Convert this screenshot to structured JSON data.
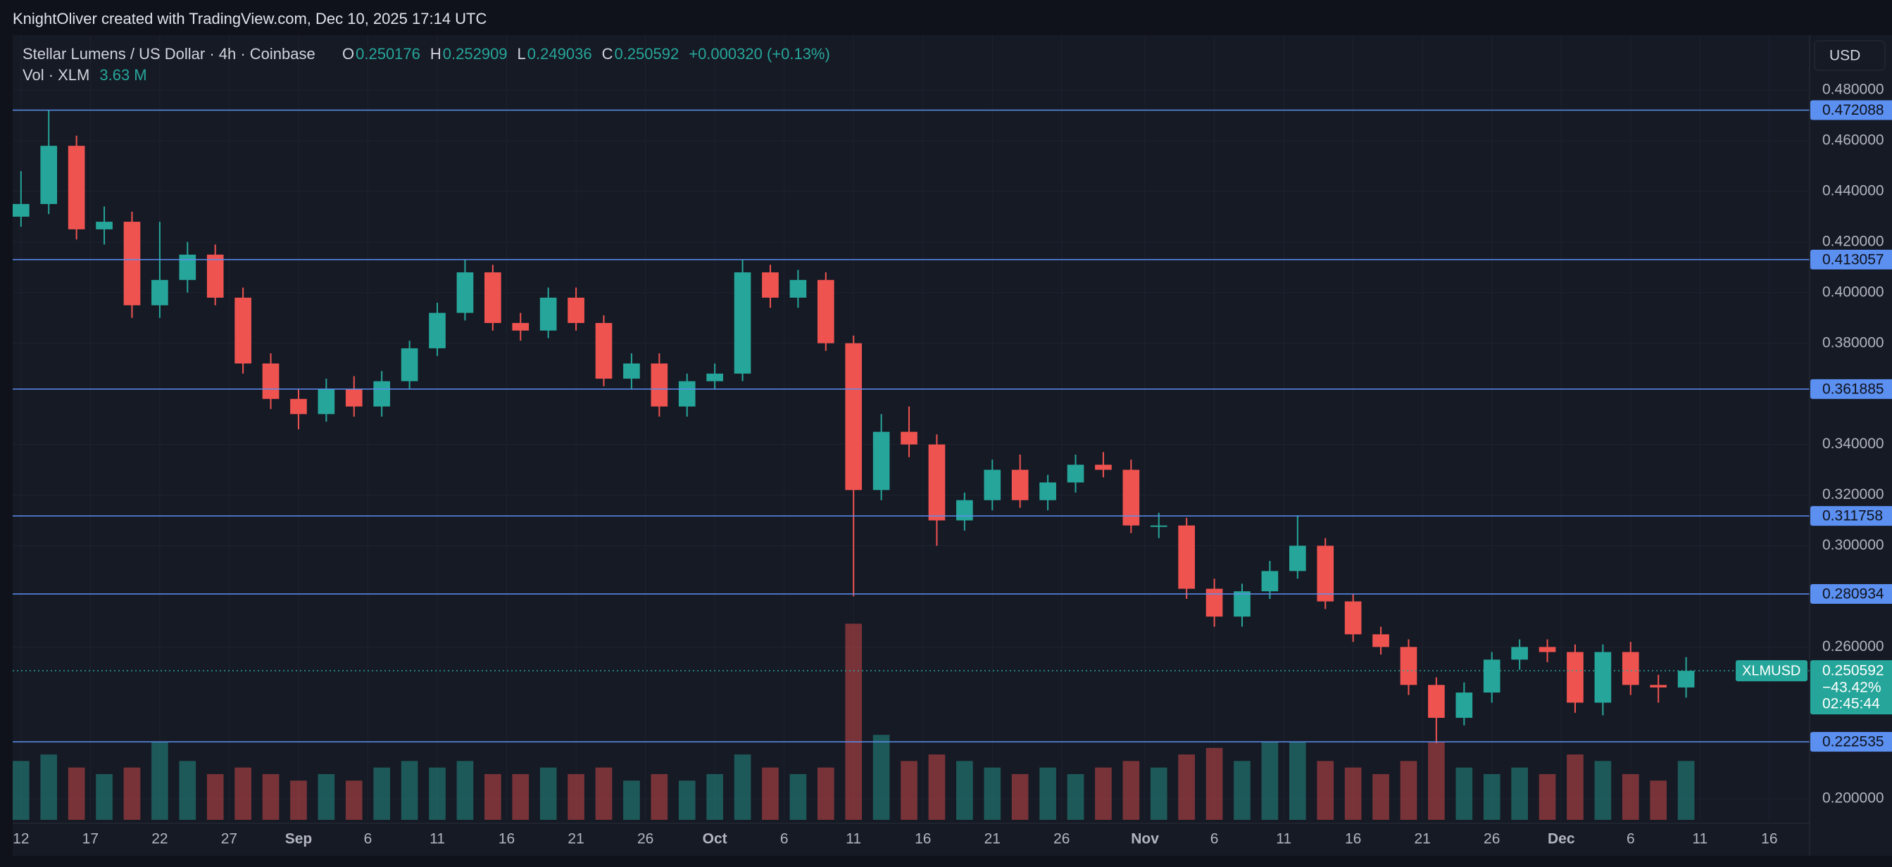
{
  "header": {
    "credit": "KnightOliver created with TradingView.com, Dec 10, 2025 17:14 UTC",
    "currency_button": "USD"
  },
  "chart_data": {
    "type": "candlestick",
    "title": "Stellar Lumens / US Dollar · 4h · Coinbase",
    "ohlc_labels": [
      "O",
      "H",
      "L",
      "C"
    ],
    "ohlc_values": [
      "0.250176",
      "0.252909",
      "0.249036",
      "0.250592"
    ],
    "change": "+0.000320 (+0.13%)",
    "volume_label": "Vol · XLM",
    "volume_value": "3.63 M",
    "up_color": "#26a69a",
    "down_color": "#ef5350",
    "level_color": "#5b8ff0",
    "xlim": [
      -0.6,
      128.9
    ],
    "xticks": [
      {
        "value": 0,
        "label": "12"
      },
      {
        "value": 5,
        "label": "17"
      },
      {
        "value": 10,
        "label": "22"
      },
      {
        "value": 15,
        "label": "27"
      },
      {
        "value": 20,
        "label": "Sep"
      },
      {
        "value": 25,
        "label": "6"
      },
      {
        "value": 30,
        "label": "11"
      },
      {
        "value": 35,
        "label": "16"
      },
      {
        "value": 40,
        "label": "21"
      },
      {
        "value": 45,
        "label": "26"
      },
      {
        "value": 50,
        "label": "Oct"
      },
      {
        "value": 55,
        "label": "6"
      },
      {
        "value": 60,
        "label": "11"
      },
      {
        "value": 65,
        "label": "16"
      },
      {
        "value": 70,
        "label": "21"
      },
      {
        "value": 75,
        "label": "26"
      },
      {
        "value": 81,
        "label": "Nov"
      },
      {
        "value": 86,
        "label": "6"
      },
      {
        "value": 91,
        "label": "11"
      },
      {
        "value": 96,
        "label": "16"
      },
      {
        "value": 101,
        "label": "21"
      },
      {
        "value": 106,
        "label": "26"
      },
      {
        "value": 111,
        "label": "Dec"
      },
      {
        "value": 116,
        "label": "6"
      },
      {
        "value": 121,
        "label": "11"
      },
      {
        "value": 126,
        "label": "16"
      }
    ],
    "ylim": [
      0.1917,
      0.5017
    ],
    "yticks": [
      {
        "value": 0.2,
        "label": "0.200000"
      },
      {
        "value": 0.26,
        "label": "0.260000"
      },
      {
        "value": 0.3,
        "label": "0.300000"
      },
      {
        "value": 0.32,
        "label": "0.320000"
      },
      {
        "value": 0.34,
        "label": "0.340000"
      },
      {
        "value": 0.38,
        "label": "0.380000"
      },
      {
        "value": 0.4,
        "label": "0.400000"
      },
      {
        "value": 0.42,
        "label": "0.420000"
      },
      {
        "value": 0.44,
        "label": "0.440000"
      },
      {
        "value": 0.46,
        "label": "0.460000"
      },
      {
        "value": 0.48,
        "label": "0.480000"
      }
    ],
    "levels": [
      {
        "value": 0.472088,
        "label": "0.472088"
      },
      {
        "value": 0.413057,
        "label": "0.413057"
      },
      {
        "value": 0.361885,
        "label": "0.361885"
      },
      {
        "value": 0.311758,
        "label": "0.311758"
      },
      {
        "value": 0.280934,
        "label": "0.280934"
      },
      {
        "value": 0.222535,
        "label": "0.222535"
      }
    ],
    "last": {
      "symbol": "XLMUSD",
      "value": 0.250592,
      "label": "0.250592",
      "change": "−43.42%",
      "countdown": "02:45:44"
    },
    "x": [
      0,
      2,
      4,
      6,
      8,
      10,
      12,
      14,
      16,
      18,
      20,
      22,
      24,
      26,
      28,
      30,
      32,
      34,
      36,
      38,
      40,
      42,
      44,
      46,
      48,
      50,
      52,
      54,
      56,
      58,
      60,
      62,
      64,
      66,
      68,
      70,
      72,
      74,
      76,
      78,
      80,
      82,
      84,
      86,
      88,
      90,
      92,
      94,
      96,
      98,
      100,
      102,
      104,
      106,
      108,
      110,
      112,
      114,
      116,
      118,
      120
    ],
    "open": [
      0.43,
      0.435,
      0.458,
      0.425,
      0.428,
      0.395,
      0.405,
      0.415,
      0.398,
      0.372,
      0.358,
      0.352,
      0.362,
      0.355,
      0.365,
      0.378,
      0.392,
      0.408,
      0.388,
      0.385,
      0.398,
      0.388,
      0.366,
      0.372,
      0.355,
      0.365,
      0.368,
      0.408,
      0.398,
      0.405,
      0.38,
      0.322,
      0.345,
      0.34,
      0.31,
      0.318,
      0.33,
      0.318,
      0.325,
      0.332,
      0.33,
      0.308,
      0.308,
      0.283,
      0.272,
      0.282,
      0.29,
      0.3,
      0.278,
      0.265,
      0.26,
      0.245,
      0.232,
      0.242,
      0.255,
      0.26,
      0.258,
      0.238,
      0.258,
      0.245,
      0.244
    ],
    "high": [
      0.448,
      0.472,
      0.462,
      0.434,
      0.432,
      0.428,
      0.42,
      0.419,
      0.402,
      0.376,
      0.362,
      0.366,
      0.367,
      0.369,
      0.381,
      0.396,
      0.413,
      0.411,
      0.392,
      0.402,
      0.402,
      0.391,
      0.376,
      0.376,
      0.368,
      0.372,
      0.413,
      0.411,
      0.409,
      0.408,
      0.383,
      0.352,
      0.355,
      0.344,
      0.321,
      0.334,
      0.336,
      0.328,
      0.336,
      0.337,
      0.334,
      0.313,
      0.311,
      0.287,
      0.285,
      0.294,
      0.312,
      0.303,
      0.281,
      0.268,
      0.263,
      0.248,
      0.246,
      0.258,
      0.263,
      0.263,
      0.261,
      0.261,
      0.262,
      0.249,
      0.256
    ],
    "low": [
      0.426,
      0.431,
      0.421,
      0.419,
      0.39,
      0.39,
      0.4,
      0.395,
      0.368,
      0.354,
      0.346,
      0.349,
      0.351,
      0.351,
      0.362,
      0.375,
      0.389,
      0.385,
      0.381,
      0.382,
      0.385,
      0.363,
      0.362,
      0.351,
      0.351,
      0.362,
      0.365,
      0.394,
      0.394,
      0.377,
      0.28,
      0.318,
      0.335,
      0.3,
      0.306,
      0.314,
      0.315,
      0.314,
      0.321,
      0.327,
      0.305,
      0.303,
      0.279,
      0.268,
      0.268,
      0.279,
      0.287,
      0.275,
      0.262,
      0.257,
      0.241,
      0.222,
      0.229,
      0.238,
      0.251,
      0.254,
      0.234,
      0.233,
      0.241,
      0.238,
      0.24
    ],
    "close": [
      0.435,
      0.458,
      0.425,
      0.428,
      0.395,
      0.405,
      0.415,
      0.398,
      0.372,
      0.358,
      0.352,
      0.362,
      0.355,
      0.365,
      0.378,
      0.392,
      0.408,
      0.388,
      0.385,
      0.398,
      0.388,
      0.366,
      0.372,
      0.355,
      0.365,
      0.368,
      0.408,
      0.398,
      0.405,
      0.38,
      0.322,
      0.345,
      0.34,
      0.31,
      0.318,
      0.33,
      0.318,
      0.325,
      0.332,
      0.33,
      0.308,
      0.308,
      0.283,
      0.272,
      0.282,
      0.29,
      0.3,
      0.278,
      0.265,
      0.26,
      0.245,
      0.232,
      0.242,
      0.255,
      0.26,
      0.258,
      0.238,
      0.258,
      0.245,
      0.244,
      0.2506
    ],
    "volume": [
      9,
      10,
      8,
      7,
      8,
      12,
      9,
      7,
      8,
      7,
      6,
      7,
      6,
      8,
      9,
      8,
      9,
      7,
      7,
      8,
      7,
      8,
      6,
      7,
      6,
      7,
      10,
      8,
      7,
      8,
      30,
      13,
      9,
      10,
      9,
      8,
      7,
      8,
      7,
      8,
      9,
      8,
      10,
      11,
      9,
      12,
      12,
      9,
      8,
      7,
      9,
      12,
      8,
      7,
      8,
      7,
      10,
      9,
      7,
      6,
      9
    ],
    "vlim": [
      0,
      120
    ]
  }
}
